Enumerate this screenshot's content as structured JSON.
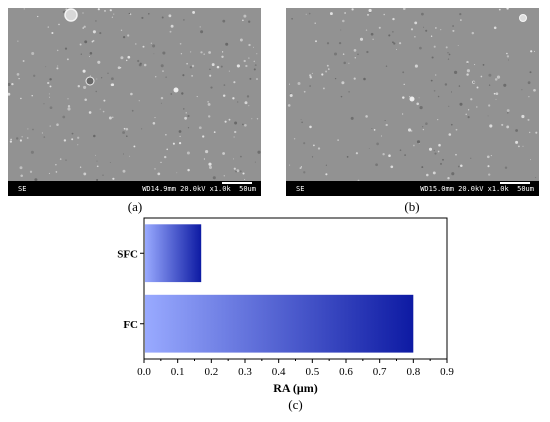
{
  "panels": [
    {
      "caption": "(a)",
      "mode": "SE",
      "info": "WD14.9mm 20.0kV x1.0k  50um"
    },
    {
      "caption": "(b)",
      "mode": "SE",
      "info": "WD15.0mm 20.0kV x1.0k  50um"
    }
  ],
  "chart_data": {
    "type": "bar",
    "orientation": "horizontal",
    "categories": [
      "SFC",
      "FC"
    ],
    "values": [
      0.17,
      0.8
    ],
    "xlabel": "RA (μm)",
    "ylabel": "",
    "xlim": [
      0.0,
      0.9
    ],
    "xticks": [
      "0.0",
      "0.1",
      "0.2",
      "0.3",
      "0.4",
      "0.5",
      "0.6",
      "0.7",
      "0.8",
      "0.9"
    ],
    "caption": "(c)",
    "grid": false,
    "bar_gradient": [
      "#99aaff",
      "#0d1aa3"
    ]
  }
}
